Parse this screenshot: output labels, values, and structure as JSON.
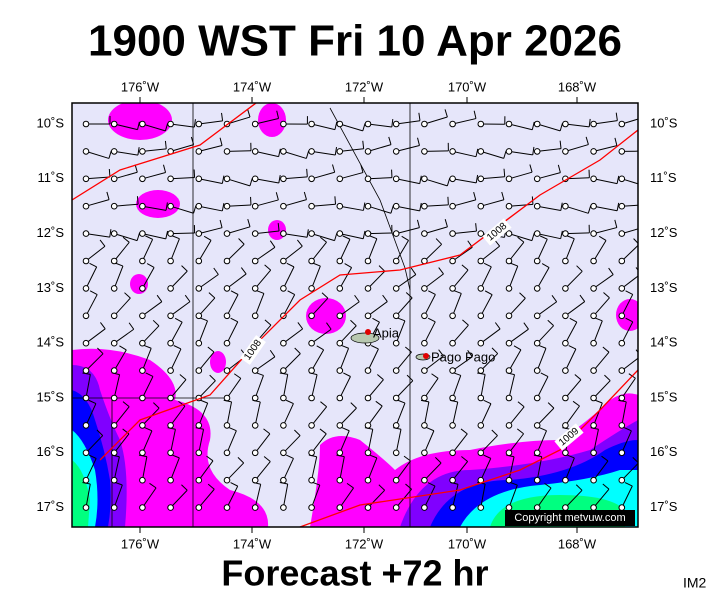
{
  "header": {
    "title": "1900 WST Fri 10 Apr 2026"
  },
  "map": {
    "lon_labels": [
      "176˚W",
      "174˚W",
      "172˚W",
      "170˚W",
      "168˚W"
    ],
    "lat_labels": [
      "10˚S",
      "11˚S",
      "12˚S",
      "13˚S",
      "14˚S",
      "15˚S",
      "16˚S",
      "17˚S"
    ],
    "places": [
      {
        "label": "Apia"
      },
      {
        "label": "Pago Pago"
      }
    ],
    "isobar_labels": [
      "1008",
      "1008",
      "1009"
    ],
    "copyright": "Copyright metvuw.com"
  },
  "footer": {
    "caption": "Forecast +72 hr",
    "code": "IM2"
  }
}
